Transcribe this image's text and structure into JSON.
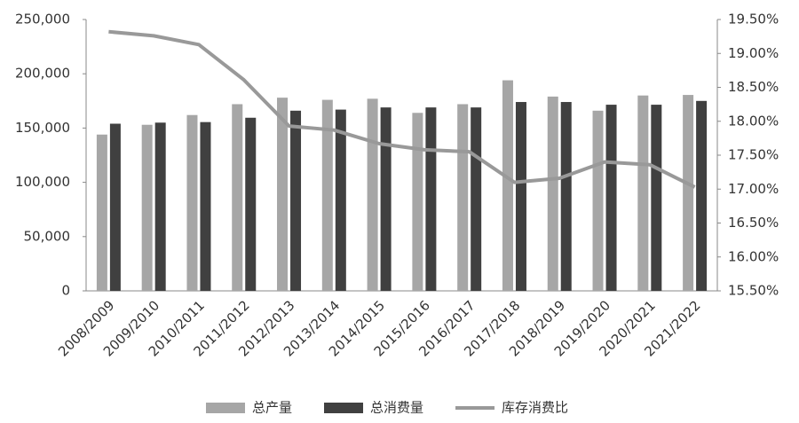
{
  "chart_data": {
    "type": "bar-line",
    "categories": [
      "2008/2009",
      "2009/2010",
      "2010/2011",
      "2011/2012",
      "2012/2013",
      "2013/2014",
      "2014/2015",
      "2015/2016",
      "2016/2017",
      "2017/2018",
      "2018/2019",
      "2019/2020",
      "2020/2021",
      "2021/2022"
    ],
    "series": [
      {
        "name": "总产量",
        "type": "bar",
        "color": "#a6a6a6",
        "values": [
          144000,
          153000,
          162000,
          172000,
          178000,
          176000,
          177000,
          164000,
          172000,
          194000,
          179000,
          166000,
          180000,
          180500
        ]
      },
      {
        "name": "总消费量",
        "type": "bar",
        "color": "#404040",
        "values": [
          154000,
          155000,
          155500,
          159500,
          166000,
          167000,
          169000,
          169000,
          169000,
          174000,
          174000,
          171500,
          171500,
          175000
        ]
      },
      {
        "name": "库存消费比",
        "type": "line",
        "axis": "y2",
        "color": "#999999",
        "values": [
          19.32,
          19.26,
          19.13,
          18.61,
          17.93,
          17.87,
          17.67,
          17.58,
          17.55,
          17.1,
          17.16,
          17.4,
          17.36,
          17.03
        ]
      }
    ],
    "ylim": [
      0,
      250000
    ],
    "yticks": [
      0,
      {
        "value": 50000,
        "label": "50,000"
      },
      {
        "value": 100000,
        "label": "100,000"
      },
      {
        "value": 150000,
        "label": "150,000"
      },
      {
        "value": 200000,
        "label": "200,000"
      },
      {
        "value": 250000,
        "label": "250,000"
      }
    ],
    "y2lim": [
      15.5,
      19.5
    ],
    "y2ticks": [
      {
        "value": 15.5,
        "label": "15.50%"
      },
      {
        "value": 16,
        "label": "16.00%"
      },
      {
        "value": 16.5,
        "label": "16.50%"
      },
      {
        "value": 17,
        "label": "17.00%"
      },
      {
        "value": 17.5,
        "label": "17.50%"
      },
      {
        "value": 18,
        "label": "18.00%"
      },
      {
        "value": 18.5,
        "label": "18.50%"
      },
      {
        "value": 19,
        "label": "19.00%"
      },
      {
        "value": 19.5,
        "label": "19.50%"
      }
    ],
    "legend": "bottom"
  }
}
